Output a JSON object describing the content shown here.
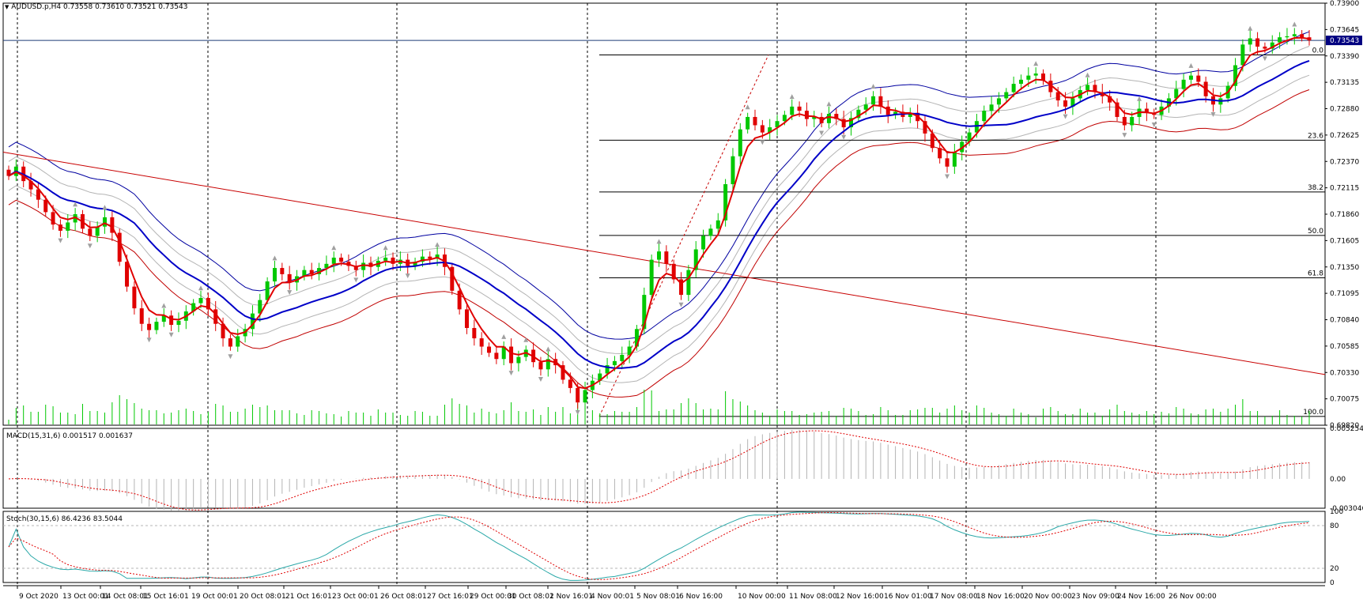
{
  "main_pane": {
    "symbol_label": "AUDUSD.p,H4",
    "ohlc_label": "0.73558 0.73610 0.73521 0.73543",
    "current_price_tag": "0.73543"
  },
  "macd_pane": {
    "label": "MACD(15,31,6) 0.001517 0.001637"
  },
  "stoch_pane": {
    "label": "Stoch(30,15,6) 86.4236 83.5044"
  },
  "colors": {
    "bull_candle": "#00c800",
    "bear_candle": "#e00000",
    "ma_fast": "#e00000",
    "ma_slow": "#0000c8",
    "envelope_outer_upper": "#0000a0",
    "envelope_outer_lower": "#c00000",
    "envelope_inner": "#b4b4b4",
    "trendline": "#c80000",
    "fib_lines": "#000000",
    "volume": "#00c800",
    "macd_histogram": "#b4b4b4",
    "macd_signal": "#e00000",
    "stoch_main": "#2aa8a8",
    "stoch_signal": "#e00000",
    "price_tag_bg": "#000080"
  },
  "chart_data": [
    {
      "type": "candlestick",
      "timeframe": "H4",
      "y_ticks": [
        "0.73900",
        "0.73645",
        "0.73390",
        "0.73135",
        "0.72880",
        "0.72625",
        "0.72370",
        "0.72115",
        "0.71860",
        "0.71605",
        "0.71350",
        "0.71095",
        "0.70840",
        "0.70585",
        "0.70330",
        "0.70075",
        "0.69820"
      ],
      "ylim": [
        0.6982,
        0.739
      ],
      "x_ticks": [
        "9 Oct 2020",
        "13 Oct 00:01",
        "14 Oct 08:01",
        "15 Oct 16:01",
        "19 Oct 00:01",
        "20 Oct 08:01",
        "21 Oct 16:01",
        "23 Oct 00:01",
        "26 Oct 08:01",
        "27 Oct 16:01",
        "29 Oct 00:01",
        "30 Oct 08:01",
        "2 Nov 16:01",
        "4 Nov 00:01",
        "5 Nov 08:01",
        "6 Nov 16:00",
        "10 Nov 00:00",
        "11 Nov 08:00",
        "12 Nov 16:00",
        "16 Nov 01:00",
        "17 Nov 08:00",
        "18 Nov 16:00",
        "20 Nov 00:00",
        "23 Nov 09:00",
        "24 Nov 16:00",
        "26 Nov 00:00"
      ],
      "fibonacci_levels": [
        {
          "label": "0.0",
          "price": 0.734
        },
        {
          "label": "23.6",
          "price": 0.72575
        },
        {
          "label": "38.2",
          "price": 0.72075
        },
        {
          "label": "50.0",
          "price": 0.71655
        },
        {
          "label": "61.8",
          "price": 0.71245
        },
        {
          "label": "100.0",
          "price": 0.69905
        }
      ],
      "close_series": [
        0.7223,
        0.7232,
        0.7218,
        0.721,
        0.72,
        0.7188,
        0.7176,
        0.717,
        0.7178,
        0.7186,
        0.7172,
        0.7165,
        0.7174,
        0.7183,
        0.7168,
        0.714,
        0.7116,
        0.7095,
        0.708,
        0.7074,
        0.7082,
        0.7088,
        0.7079,
        0.7083,
        0.7092,
        0.71,
        0.7105,
        0.7094,
        0.708,
        0.7066,
        0.7058,
        0.7068,
        0.7075,
        0.709,
        0.7103,
        0.7121,
        0.7134,
        0.7128,
        0.712,
        0.7126,
        0.7132,
        0.7128,
        0.7134,
        0.7138,
        0.7144,
        0.714,
        0.7136,
        0.7132,
        0.7139,
        0.7135,
        0.7141,
        0.7144,
        0.7138,
        0.7142,
        0.7136,
        0.714,
        0.7145,
        0.7143,
        0.7147,
        0.7135,
        0.7112,
        0.7094,
        0.7076,
        0.7066,
        0.7058,
        0.7052,
        0.7046,
        0.7058,
        0.7042,
        0.7048,
        0.7055,
        0.7043,
        0.7036,
        0.7046,
        0.704,
        0.7026,
        0.7018,
        0.7004,
        0.7016,
        0.7025,
        0.7032,
        0.704,
        0.7044,
        0.705,
        0.7058,
        0.7075,
        0.7108,
        0.7142,
        0.715,
        0.7138,
        0.7123,
        0.7108,
        0.7132,
        0.7152,
        0.7165,
        0.7172,
        0.718,
        0.7215,
        0.7242,
        0.7268,
        0.728,
        0.7272,
        0.7265,
        0.727,
        0.7276,
        0.7282,
        0.729,
        0.7286,
        0.7278,
        0.728,
        0.7274,
        0.7283,
        0.7278,
        0.727,
        0.7279,
        0.7287,
        0.7292,
        0.73,
        0.729,
        0.7282,
        0.7285,
        0.728,
        0.7284,
        0.7276,
        0.7264,
        0.725,
        0.724,
        0.7232,
        0.7246,
        0.7256,
        0.7265,
        0.7276,
        0.7286,
        0.7292,
        0.7298,
        0.7304,
        0.7312,
        0.7316,
        0.732,
        0.7322,
        0.7315,
        0.7304,
        0.7296,
        0.729,
        0.7298,
        0.7306,
        0.7311,
        0.7304,
        0.73,
        0.7294,
        0.728,
        0.7272,
        0.728,
        0.7288,
        0.7284,
        0.7282,
        0.729,
        0.7298,
        0.7307,
        0.7316,
        0.732,
        0.7314,
        0.73,
        0.7292,
        0.7298,
        0.731,
        0.733,
        0.735,
        0.7356,
        0.7348,
        0.7346,
        0.7352,
        0.7357,
        0.7358,
        0.736,
        0.7357,
        0.7354
      ]
    },
    {
      "type": "histogram",
      "name": "MACD(15,31,6)",
      "y_ticks": [
        "0.005254",
        "0.00",
        "-0.003046"
      ],
      "ylim": [
        -0.003046,
        0.005254
      ]
    },
    {
      "type": "line",
      "name": "Stoch(30,15,6)",
      "y_ticks": [
        "100",
        "80",
        "20",
        "0"
      ],
      "ylim": [
        0,
        100
      ]
    }
  ]
}
